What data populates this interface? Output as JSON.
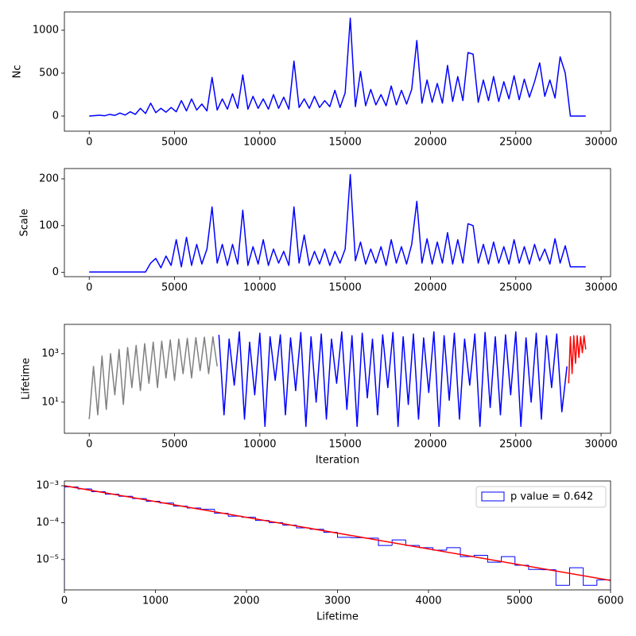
{
  "chart_data": [
    {
      "type": "line",
      "ylabel": "Nc",
      "xlim": [
        -1455,
        30555
      ],
      "xticks": [
        0,
        5000,
        10000,
        15000,
        20000,
        25000,
        30000
      ],
      "ylim": [
        -176,
        1213
      ],
      "yticks": [
        0,
        500,
        1000
      ],
      "series": [
        {
          "color": "#0000ff",
          "x": [
            0,
            300,
            600,
            900,
            1200,
            1500,
            1800,
            2100,
            2400,
            2700,
            3000,
            3300,
            3600,
            3900,
            4200,
            4500,
            4800,
            5100,
            5400,
            5700,
            6000,
            6300,
            6600,
            6900,
            7200,
            7500,
            7800,
            8100,
            8400,
            8700,
            9000,
            9300,
            9600,
            9900,
            10200,
            10500,
            10800,
            11100,
            11400,
            11700,
            12000,
            12300,
            12600,
            12900,
            13200,
            13500,
            13800,
            14100,
            14400,
            14700,
            15000,
            15300,
            15600,
            15900,
            16200,
            16500,
            16800,
            17100,
            17400,
            17700,
            18000,
            18300,
            18600,
            18900,
            19200,
            19500,
            19800,
            20100,
            20400,
            20700,
            21000,
            21300,
            21600,
            21900,
            22200,
            22500,
            22800,
            23100,
            23400,
            23700,
            24000,
            24300,
            24600,
            24900,
            25200,
            25500,
            25800,
            26100,
            26400,
            26700,
            27000,
            27300,
            27600,
            27900,
            28200,
            28500,
            28800,
            29100
          ],
          "values": [
            0,
            5,
            10,
            3,
            20,
            8,
            35,
            12,
            50,
            20,
            90,
            30,
            150,
            40,
            90,
            45,
            100,
            50,
            180,
            60,
            200,
            70,
            140,
            60,
            450,
            70,
            200,
            80,
            260,
            90,
            480,
            80,
            230,
            90,
            200,
            80,
            250,
            90,
            220,
            80,
            640,
            100,
            200,
            90,
            230,
            100,
            180,
            110,
            300,
            100,
            270,
            1140,
            110,
            520,
            120,
            310,
            130,
            250,
            120,
            350,
            130,
            300,
            140,
            310,
            880,
            150,
            420,
            160,
            380,
            150,
            590,
            170,
            460,
            180,
            740,
            720,
            160,
            420,
            180,
            460,
            170,
            400,
            200,
            470,
            190,
            430,
            220,
            400,
            620,
            230,
            420,
            210,
            690,
            500,
            0,
            0,
            0,
            0
          ]
        }
      ]
    },
    {
      "type": "line",
      "ylabel": "Scale",
      "xlim": [
        -1455,
        30555
      ],
      "xticks": [
        0,
        5000,
        10000,
        15000,
        20000,
        25000,
        30000
      ],
      "ylim": [
        -9,
        222
      ],
      "yticks": [
        0,
        100,
        200
      ],
      "series": [
        {
          "color": "#0000ff",
          "x": [
            0,
            300,
            600,
            900,
            1200,
            1500,
            1800,
            2100,
            2400,
            2700,
            3000,
            3300,
            3600,
            3900,
            4200,
            4500,
            4800,
            5100,
            5400,
            5700,
            6000,
            6300,
            6600,
            6900,
            7200,
            7500,
            7800,
            8100,
            8400,
            8700,
            9000,
            9300,
            9600,
            9900,
            10200,
            10500,
            10800,
            11100,
            11400,
            11700,
            12000,
            12300,
            12600,
            12900,
            13200,
            13500,
            13800,
            14100,
            14400,
            14700,
            15000,
            15300,
            15600,
            15900,
            16200,
            16500,
            16800,
            17100,
            17400,
            17700,
            18000,
            18300,
            18600,
            18900,
            19200,
            19500,
            19800,
            20100,
            20400,
            20700,
            21000,
            21300,
            21600,
            21900,
            22200,
            22500,
            22800,
            23100,
            23400,
            23700,
            24000,
            24300,
            24600,
            24900,
            25200,
            25500,
            25800,
            26100,
            26400,
            26700,
            27000,
            27300,
            27600,
            27900,
            28200,
            28500,
            28800,
            29100
          ],
          "values": [
            1,
            1,
            1,
            1,
            1,
            1,
            1,
            1,
            1,
            1,
            1,
            1,
            20,
            30,
            10,
            35,
            15,
            70,
            12,
            75,
            15,
            60,
            18,
            50,
            140,
            20,
            60,
            15,
            60,
            18,
            133,
            15,
            55,
            18,
            70,
            15,
            50,
            20,
            45,
            15,
            140,
            20,
            80,
            15,
            45,
            18,
            50,
            15,
            45,
            20,
            50,
            209,
            25,
            65,
            18,
            50,
            20,
            55,
            15,
            70,
            20,
            55,
            18,
            60,
            152,
            20,
            72,
            18,
            65,
            20,
            85,
            18,
            70,
            20,
            104,
            100,
            20,
            60,
            18,
            65,
            20,
            55,
            18,
            70,
            20,
            55,
            18,
            60,
            25,
            50,
            18,
            72,
            20,
            57,
            12,
            12,
            12,
            12
          ]
        }
      ]
    },
    {
      "type": "line",
      "ylabel": "Lifetime",
      "xlabel": "Iteration",
      "yscale": "log",
      "xlim": [
        -1455,
        30555
      ],
      "xticks": [
        0,
        5000,
        10000,
        15000,
        20000,
        25000,
        30000
      ],
      "ylim": [
        0.52,
        16200
      ],
      "yticks": [
        {
          "value": 10,
          "label": "10¹"
        },
        {
          "value": 1000,
          "label": "10³"
        }
      ],
      "series": [
        {
          "color": "#808080",
          "x": [
            0,
            250,
            500,
            750,
            1000,
            1250,
            1500,
            1750,
            2000,
            2250,
            2500,
            2750,
            3000,
            3250,
            3500,
            3750,
            4000,
            4250,
            4500,
            4750,
            5000,
            5250,
            5500,
            5750,
            6000,
            6250,
            6500,
            6750,
            7000,
            7250,
            7500
          ],
          "values": [
            2,
            300,
            3,
            800,
            5,
            1000,
            20,
            1500,
            8,
            1800,
            40,
            2200,
            30,
            2600,
            60,
            3000,
            40,
            3300,
            100,
            3700,
            80,
            4000,
            150,
            4300,
            100,
            4600,
            200,
            4800,
            150,
            5000,
            300
          ]
        },
        {
          "color": "#0000ff",
          "x": [
            7600,
            7900,
            8200,
            8500,
            8800,
            9100,
            9400,
            9700,
            10000,
            10300,
            10600,
            10900,
            11200,
            11500,
            11800,
            12100,
            12400,
            12700,
            13000,
            13300,
            13600,
            13900,
            14200,
            14500,
            14800,
            15100,
            15400,
            15700,
            16000,
            16300,
            16600,
            16900,
            17200,
            17500,
            17800,
            18100,
            18400,
            18700,
            19000,
            19300,
            19600,
            19900,
            20200,
            20500,
            20800,
            21100,
            21400,
            21700,
            22000,
            22300,
            22600,
            22900,
            23200,
            23500,
            23800,
            24100,
            24400,
            24700,
            25000,
            25300,
            25600,
            25900,
            26200,
            26500,
            26800,
            27100,
            27400,
            27700,
            28000
          ],
          "values": [
            6000,
            3,
            4000,
            50,
            8000,
            2,
            3000,
            20,
            7000,
            1,
            5000,
            80,
            6000,
            3,
            4500,
            30,
            7500,
            1,
            5000,
            10,
            6500,
            2,
            4000,
            60,
            8000,
            5,
            5500,
            1,
            7000,
            15,
            4000,
            3,
            6000,
            40,
            7500,
            1,
            5000,
            8,
            6500,
            2,
            4500,
            25,
            8000,
            1,
            5500,
            12,
            7000,
            2,
            4000,
            50,
            6500,
            1,
            7500,
            6,
            5000,
            3,
            6000,
            20,
            8000,
            1,
            4500,
            10,
            7000,
            2,
            5500,
            40,
            6500,
            4,
            300
          ]
        },
        {
          "color": "#ff0000",
          "x": [
            28100,
            28200,
            28300,
            28400,
            28500,
            28600,
            28700,
            28800,
            28900,
            29000,
            29100
          ],
          "values": [
            60,
            5000,
            150,
            5500,
            400,
            5500,
            700,
            5000,
            1100,
            5500,
            1500
          ]
        }
      ]
    },
    {
      "type": "histogram",
      "xlabel": "Lifetime",
      "yscale": "log",
      "legend": "upper right",
      "xlim": [
        0,
        6000
      ],
      "xticks": [
        0,
        1000,
        2000,
        3000,
        4000,
        5000,
        6000
      ],
      "ylim": [
        1.5e-06,
        0.00135
      ],
      "yticks": [
        {
          "value": 0.001,
          "label": "10⁻³"
        },
        {
          "value": 0.0001,
          "label": "10⁻⁴"
        },
        {
          "value": 1e-05,
          "label": "10⁻⁵"
        }
      ],
      "bins": [
        0,
        150,
        300,
        450,
        600,
        750,
        900,
        1050,
        1200,
        1350,
        1500,
        1650,
        1800,
        1950,
        2100,
        2250,
        2400,
        2550,
        2700,
        2850,
        3000,
        3150,
        3300,
        3450,
        3600,
        3750,
        3900,
        4050,
        4200,
        4350,
        4500,
        4650,
        4800,
        4950,
        5100,
        5250,
        5400,
        5550,
        5700,
        5850,
        6000
      ],
      "series": [
        {
          "name": "p value = 0.642",
          "color": "#0000ff",
          "values": [
            0.00093,
            0.00082,
            0.00069,
            0.00059,
            0.00052,
            0.00045,
            0.00038,
            0.00034,
            0.00028,
            0.00025,
            0.00023,
            0.00018,
            0.00015,
            0.00014,
            0.000115,
            0.0001,
            8.6e-05,
            7.2e-05,
            6.6e-05,
            5.5e-05,
            4e-05,
            3.9e-05,
            3.8e-05,
            2.4e-05,
            3.4e-05,
            2.4e-05,
            2.1e-05,
            1.8e-05,
            2.1e-05,
            1.2e-05,
            1.3e-05,
            8.5e-06,
            1.2e-05,
            7e-06,
            5.4e-06,
            5.3e-06,
            2e-06,
            6e-06,
            2e-06,
            2.8e-06
          ]
        }
      ],
      "fit": {
        "color": "#ff0000",
        "x": [
          0,
          6000
        ],
        "values": [
          0.001,
          2.7e-06
        ]
      }
    }
  ]
}
